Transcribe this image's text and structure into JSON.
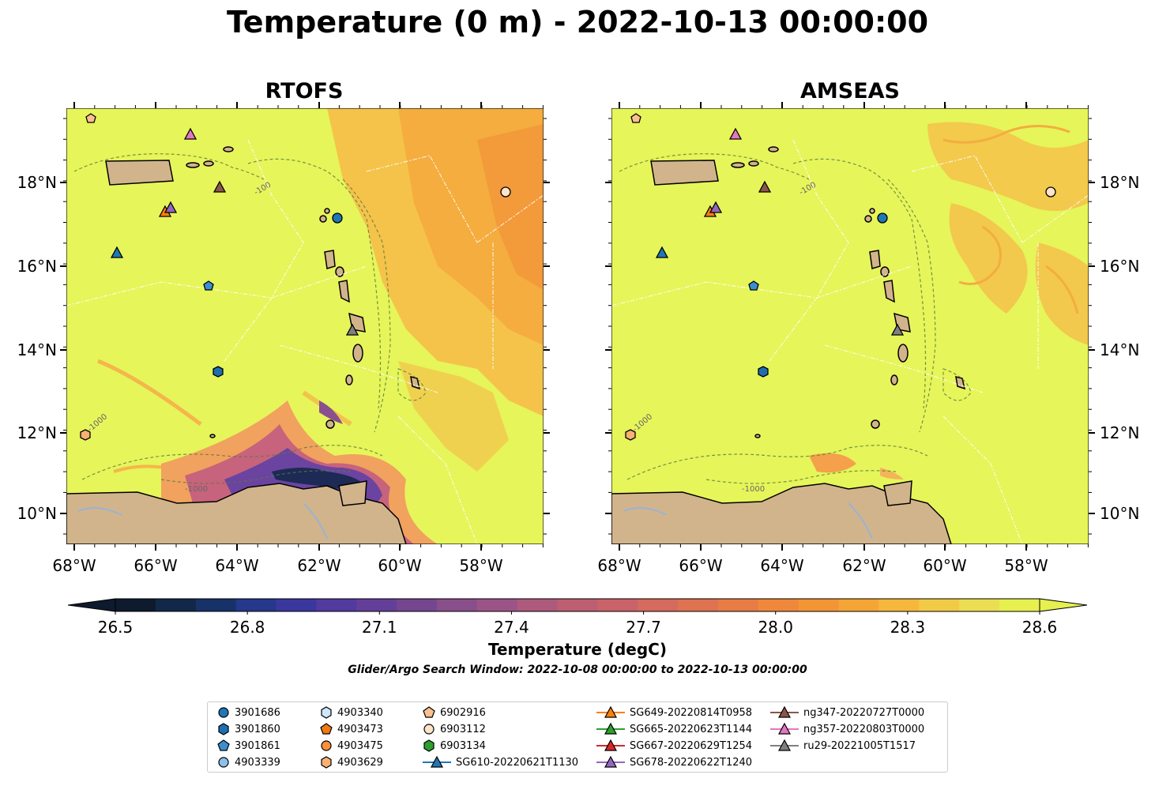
{
  "title": "Temperature (0 m) - 2022-10-13 00:00:00",
  "panels": [
    {
      "id": "rtofs",
      "title": "RTOFS"
    },
    {
      "id": "amseas",
      "title": "AMSEAS"
    }
  ],
  "lon_labels": [
    "68°W",
    "66°W",
    "64°W",
    "62°W",
    "60°W",
    "58°W"
  ],
  "lat_labels": [
    "18°N",
    "16°N",
    "14°N",
    "12°N",
    "10°N"
  ],
  "contour_labels": [
    "-100",
    "-1000"
  ],
  "colorbar": {
    "label": "Temperature (degC)",
    "ticks": [
      "26.5",
      "26.8",
      "27.1",
      "27.4",
      "27.7",
      "28.0",
      "28.3",
      "28.6"
    ],
    "range": [
      26.5,
      28.6
    ],
    "extend": "both",
    "colors": [
      "#0e1a2d",
      "#112848",
      "#173268",
      "#25388c",
      "#3a379e",
      "#523a9f",
      "#633f99",
      "#754690",
      "#894f8a",
      "#9b5485",
      "#ad5a7c",
      "#bd5e72",
      "#ca6369",
      "#d56a5e",
      "#df7251",
      "#e77c45",
      "#ef883b",
      "#f39534",
      "#f5a535",
      "#f5b83d",
      "#f2cb46",
      "#ecde52",
      "#e6f04f"
    ]
  },
  "search_window": "Glider/Argo Search Window: 2022-10-08 00:00:00 to 2022-10-13 00:00:00",
  "legend": {
    "columns": [
      [
        {
          "label": "3901686",
          "marker": "circle",
          "color": "#1f77b4"
        },
        {
          "label": "3901860",
          "marker": "hexagon",
          "color": "#1f6fb0"
        },
        {
          "label": "3901861",
          "marker": "pentagon",
          "color": "#3b8fd0"
        },
        {
          "label": "4903339",
          "marker": "circle",
          "color": "#8fc0ea"
        }
      ],
      [
        {
          "label": "4903340",
          "marker": "hexagon",
          "color": "#cde6fa"
        },
        {
          "label": "4903473",
          "marker": "pentagon",
          "color": "#f07a10"
        },
        {
          "label": "4903475",
          "marker": "circle",
          "color": "#ff8f3a"
        },
        {
          "label": "4903629",
          "marker": "hexagon",
          "color": "#fbb074"
        }
      ],
      [
        {
          "label": "6902916",
          "marker": "pentagon",
          "color": "#fbc090"
        },
        {
          "label": "6903112",
          "marker": "circle",
          "color": "#fde3c8"
        },
        {
          "label": "6903134",
          "marker": "hexagon",
          "color": "#2ca02c"
        },
        {
          "label": "SG610-20220621T1130",
          "marker": "triangle-line",
          "color": "#1f77b4"
        }
      ],
      [
        {
          "label": "SG649-20220814T0958",
          "marker": "triangle-line",
          "color": "#ff7f0e"
        },
        {
          "label": "SG665-20220623T1144",
          "marker": "triangle-line",
          "color": "#2ca02c"
        },
        {
          "label": "SG667-20220629T1254",
          "marker": "triangle-line",
          "color": "#d62728"
        },
        {
          "label": "SG678-20220622T1240",
          "marker": "triangle-line",
          "color": "#9467bd"
        }
      ],
      [
        {
          "label": "ng347-20220727T0000",
          "marker": "triangle-line",
          "color": "#8c564b"
        },
        {
          "label": "ng357-20220803T0000",
          "marker": "triangle-line",
          "color": "#e377c2"
        },
        {
          "label": "ru29-20221005T1517",
          "marker": "triangle-line",
          "color": "#7f7f7f"
        }
      ]
    ]
  },
  "map_colors": {
    "ocean_warm": "#e6f55a",
    "land": "#d2b48c",
    "orange_patch": "#f5a53c",
    "cold_core": "#1c2a55",
    "purple": "#6a44a0"
  }
}
